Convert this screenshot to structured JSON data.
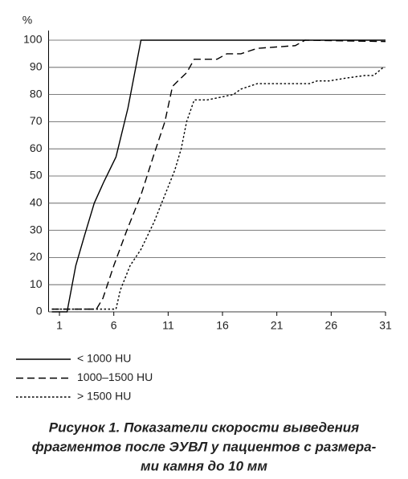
{
  "chart_data": {
    "type": "line",
    "y_label": "%",
    "xlim": [
      0,
      31
    ],
    "xticks": [
      1,
      6,
      11,
      16,
      21,
      26,
      31
    ],
    "ylim": [
      0,
      100
    ],
    "yticks": [
      0,
      10,
      20,
      30,
      40,
      50,
      60,
      70,
      80,
      90,
      100
    ],
    "grid": true,
    "series": [
      {
        "name": "< 1000 HU",
        "color": "#000000",
        "dash": "solid",
        "x": [
          0.3,
          1.7,
          2.5,
          3.3,
          4.2,
          5.1,
          6.2,
          7.3,
          8.5,
          31
        ],
        "values": [
          0,
          0,
          17,
          28,
          40,
          48,
          57,
          75,
          100,
          100
        ]
      },
      {
        "name": "1000–1500 HU",
        "color": "#000000",
        "dash": "dashed",
        "x": [
          0.3,
          4.4,
          5,
          6,
          7.2,
          8.5,
          9.7,
          10.7,
          11.4,
          11.9,
          12.7,
          13.4,
          15.5,
          16.4,
          17.7,
          19.2,
          22.7,
          23.6,
          31
        ],
        "values": [
          1,
          1,
          5,
          17,
          30,
          43,
          58,
          70,
          83,
          85,
          88,
          93,
          93,
          95,
          95,
          97,
          98,
          100,
          99.5
        ]
      },
      {
        "name": "> 1500 HU",
        "color": "#000000",
        "dash": "dotted",
        "x": [
          0.3,
          6.2,
          6.6,
          7.5,
          8.5,
          9.7,
          10.7,
          11.6,
          12.2,
          12.7,
          13.4,
          14.6,
          17,
          17.7,
          19.2,
          22.2,
          24,
          24.7,
          25.8,
          27.3,
          29.1,
          29.9,
          30.8
        ],
        "values": [
          1,
          1,
          8,
          17,
          23,
          33,
          43,
          52,
          60,
          70,
          78,
          78,
          80,
          82,
          84,
          84,
          84,
          85,
          85,
          86,
          87,
          87,
          90
        ]
      }
    ]
  },
  "caption": [
    "Рисунок 1. Показатели скорости выведения",
    "фрагментов после ЭУВЛ у пациентов с размера-",
    "ми камня до 10 мм"
  ]
}
